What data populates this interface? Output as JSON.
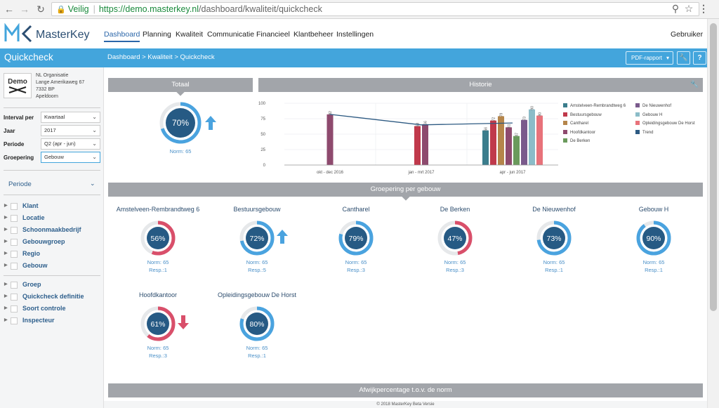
{
  "browser": {
    "back": "←",
    "forward": "→",
    "reload": "↻",
    "secure_label": "Veilig",
    "url_host": "https://demo.masterkey.nl",
    "url_path": "/dashboard/kwaliteit/quickcheck",
    "zoom_icon": "magnifier-icon",
    "star_icon": "star-icon",
    "menu_icon": "more-vert-icon"
  },
  "app": {
    "brand": "MasterKey",
    "nav": [
      "Dashboard",
      "Planning",
      "Kwaliteit",
      "Communicatie",
      "Financieel",
      "Klantbeheer",
      "Instellingen"
    ],
    "active_nav": "Dashboard",
    "user": "Gebruiker",
    "accent": "#43a5dc"
  },
  "subheader": {
    "title": "Quickcheck",
    "breadcrumb": "Dashboard  >  Kwaliteit  >  Quickcheck",
    "pdf": "PDF-rapport",
    "tool_icon": "wrench-icon",
    "help": "?"
  },
  "org": {
    "logo_text": "Demo",
    "name": "NL Organisatie",
    "street": "Lange Amerikaweg 67",
    "zip": "7332 BP",
    "city": "Apeldoorn"
  },
  "filters": [
    {
      "label": "Interval per",
      "value": "Kwartaal"
    },
    {
      "label": "Jaar",
      "value": "2017"
    },
    {
      "label": "Periode",
      "value": "Q2 (apr - jun)"
    },
    {
      "label": "Groepering",
      "value": "Gebouw"
    }
  ],
  "periode_toggle": "Periode",
  "tree1": [
    "Klant",
    "Locatie",
    "Schoonmaakbedrijf",
    "Gebouwgroep",
    "Regio",
    "Gebouw"
  ],
  "tree2": [
    "Groep",
    "Quickcheck definitie",
    "Soort controle",
    "Inspecteur"
  ],
  "totaal": {
    "header": "Totaal",
    "value": 70,
    "label": "70%",
    "norm": "Norm: 65",
    "trend": "up"
  },
  "historie": {
    "header": "Historie"
  },
  "groepering_header": "Groepering per gebouw",
  "afwijk_header": "Afwijkpercentage t.o.v. de norm",
  "buildings": [
    {
      "name": "Amstelveen-Rembrandtweg 6",
      "value": 56,
      "label": "56%",
      "norm": "Norm: 65",
      "resp": "Resp.:1",
      "color": "#d94f6a",
      "trend": ""
    },
    {
      "name": "Bestuursgebouw",
      "value": 72,
      "label": "72%",
      "norm": "Norm: 65",
      "resp": "Resp.:5",
      "color": "#4aa3df",
      "trend": "up"
    },
    {
      "name": "Cantharel",
      "value": 79,
      "label": "79%",
      "norm": "Norm: 65",
      "resp": "Resp.:3",
      "color": "#4aa3df",
      "trend": ""
    },
    {
      "name": "De Berken",
      "value": 47,
      "label": "47%",
      "norm": "Norm: 65",
      "resp": "Resp.:3",
      "color": "#d94f6a",
      "trend": ""
    },
    {
      "name": "De Nieuwenhof",
      "value": 73,
      "label": "73%",
      "norm": "Norm: 65",
      "resp": "Resp.:1",
      "color": "#4aa3df",
      "trend": ""
    },
    {
      "name": "Gebouw H",
      "value": 90,
      "label": "90%",
      "norm": "Norm: 65",
      "resp": "Resp.:1",
      "color": "#4aa3df",
      "trend": ""
    },
    {
      "name": "Hoofdkantoor",
      "value": 61,
      "label": "61%",
      "norm": "Norm: 65",
      "resp": "Resp.:3",
      "color": "#d94f6a",
      "trend": "down"
    },
    {
      "name": "Opleidingsgebouw De Horst",
      "value": 80,
      "label": "80%",
      "norm": "Norm: 65",
      "resp": "Resp.:1",
      "color": "#4aa3df",
      "trend": ""
    }
  ],
  "footer": "© 2018 MasterKey Beta Versie",
  "chart_data": {
    "type": "bar",
    "categories": [
      "okt - dec 2016",
      "jan - mrt 2017",
      "apr - jun 2017"
    ],
    "ylim": [
      0,
      100
    ],
    "yticks": [
      0,
      25,
      50,
      75,
      100
    ],
    "series": [
      {
        "name": "Amstelveen-Rembrandtweg 6",
        "color": "#3b7d8c",
        "values": [
          null,
          null,
          56
        ]
      },
      {
        "name": "Bestuursgebouw",
        "color": "#c0394b",
        "values": [
          null,
          63,
          72
        ]
      },
      {
        "name": "Cantharel",
        "color": "#b5854a",
        "values": [
          null,
          null,
          79
        ]
      },
      {
        "name": "Hoofdkantoor",
        "color": "#8e4a6e",
        "values": [
          82,
          66,
          61
        ]
      },
      {
        "name": "De Berken",
        "color": "#6a9a5c",
        "values": [
          null,
          null,
          47
        ]
      },
      {
        "name": "De Nieuwenhof",
        "color": "#7a5a8c",
        "values": [
          null,
          null,
          73
        ]
      },
      {
        "name": "Gebouw H",
        "color": "#8bbcc8",
        "values": [
          null,
          null,
          90
        ]
      },
      {
        "name": "Opleidingsgebouw De Horst",
        "color": "#e8727a",
        "values": [
          null,
          null,
          80
        ]
      },
      {
        "name": "Trend",
        "color": "#2d5a82",
        "type": "line",
        "values": [
          82,
          65,
          68
        ]
      }
    ]
  }
}
